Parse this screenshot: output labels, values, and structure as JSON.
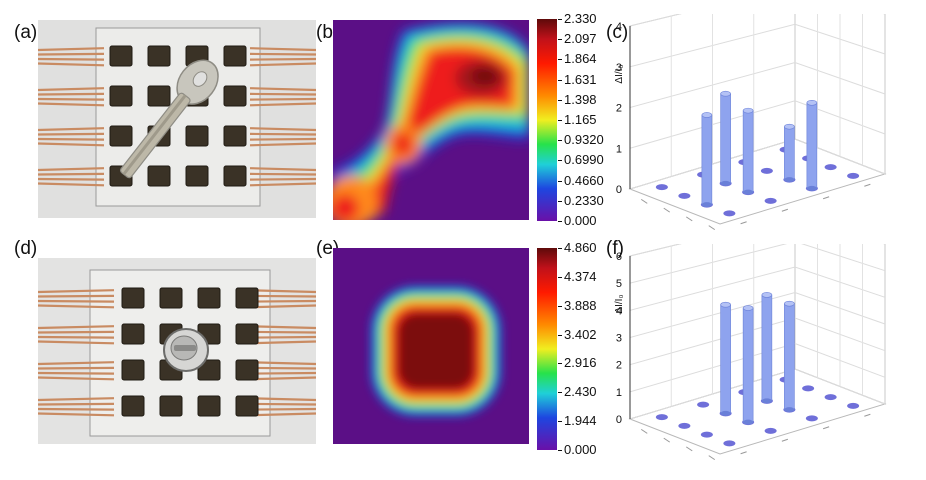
{
  "panels": {
    "a": "(a)",
    "b": "(b)",
    "c": "(c)",
    "d": "(d)",
    "e": "(e)",
    "f": "(f)"
  },
  "colorbar_top": {
    "ticks": [
      "2.330",
      "2.097",
      "1.864",
      "1.631",
      "1.398",
      "1.165",
      "0.9320",
      "0.6990",
      "0.4660",
      "0.2330",
      "0.000"
    ]
  },
  "colorbar_bottom": {
    "ticks": [
      "4.860",
      "4.374",
      "3.888",
      "3.402",
      "2.916",
      "2.430",
      "1.944",
      "0.000"
    ]
  },
  "chart_data": [
    {
      "type": "bar3d",
      "panel": "(c)",
      "ylabel": "ΔI/I₀",
      "zlim": [
        0,
        4
      ],
      "z_ticks": [
        "0",
        "1",
        "2",
        "3",
        "4"
      ],
      "grid": true,
      "bars": [
        {
          "row": 1,
          "col": 2,
          "value": 1.3
        },
        {
          "row": 1,
          "col": 3,
          "value": 2.1
        },
        {
          "row": 2,
          "col": 2,
          "value": 2.0
        },
        {
          "row": 2,
          "col": 1,
          "value": 2.2
        },
        {
          "row": 3,
          "col": 2,
          "value": 2.2
        }
      ]
    },
    {
      "type": "bar3d",
      "panel": "(f)",
      "ylabel": "ΔI/I₀",
      "zlim": [
        0,
        6
      ],
      "z_ticks": [
        "0",
        "1",
        "2",
        "3",
        "4",
        "5",
        "6"
      ],
      "grid": true,
      "bars": [
        {
          "row": 1,
          "col": 2,
          "value": 3.9
        },
        {
          "row": 1,
          "col": 1,
          "value": 3.9
        },
        {
          "row": 2,
          "col": 2,
          "value": 4.2
        },
        {
          "row": 2,
          "col": 1,
          "value": 4.0
        }
      ]
    }
  ],
  "colors": {
    "copper": "#c98b62",
    "sensor": "#3a3226",
    "bar": "#8ea3ee",
    "bar_dark": "#6a80d8",
    "disc": "#6f6fd9"
  }
}
